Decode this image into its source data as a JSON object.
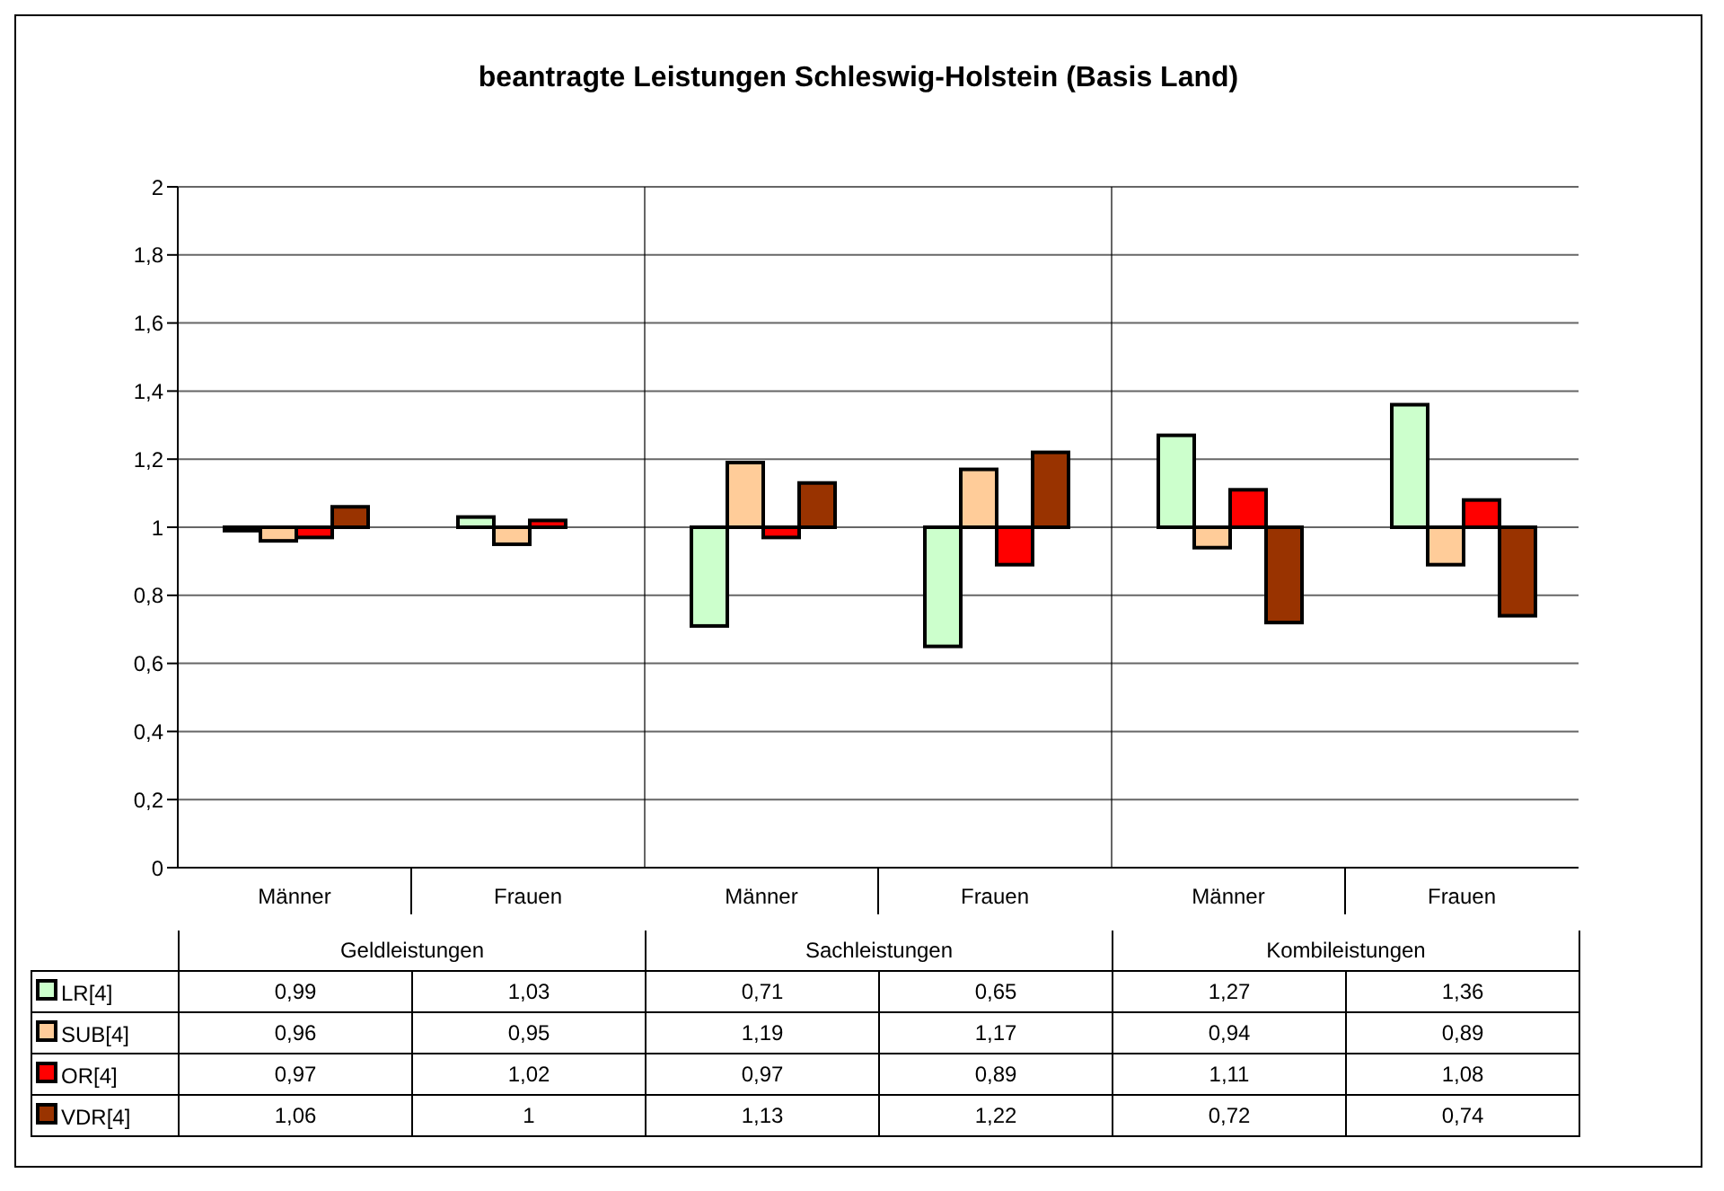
{
  "chart_data": {
    "type": "bar",
    "title": "beantragte Leistungen Schleswig-Holstein (Basis Land)",
    "categories": [
      "Männer",
      "Frauen",
      "Männer",
      "Frauen",
      "Männer",
      "Frauen"
    ],
    "annotations": [
      "Geldleistungen",
      "Sachleistungen",
      "Kombileistungen"
    ],
    "series": [
      {
        "name": "LR[4]",
        "color": "#ccffcc",
        "base": [
          1,
          1,
          1,
          1,
          1,
          1
        ],
        "values": [
          -0.01,
          0.03,
          -0.29,
          -0.35,
          0.27,
          0.36
        ]
      },
      {
        "name": "SUB[4]",
        "color": "#ffcc99",
        "base": [
          1,
          1,
          1,
          1,
          1,
          1
        ],
        "values": [
          -0.04,
          -0.05,
          0.19,
          0.17,
          -0.06,
          -0.11
        ]
      },
      {
        "name": "OR[4]",
        "color": "#ff0000",
        "base": [
          1,
          1,
          1,
          1,
          1,
          1
        ],
        "values": [
          -0.03,
          0.02,
          -0.03,
          -0.11,
          0.11,
          0.08
        ]
      },
      {
        "name": "VDR[4]",
        "color": "#993300",
        "base": [
          1,
          null,
          1,
          1,
          1,
          1
        ],
        "values": [
          0.06,
          null,
          0.13,
          0.22,
          -0.28,
          -0.26
        ]
      }
    ],
    "value_labels": [
      [
        "0,99",
        "1,03",
        "0,71",
        "0,65",
        "1,27",
        "1,36"
      ],
      [
        "0,96",
        "0,95",
        "1,19",
        "1,17",
        "0,94",
        "0,89"
      ],
      [
        "0,97",
        "1,02",
        "0,97",
        "0,89",
        "1,11",
        "1,08"
      ],
      [
        "1,06",
        "1",
        "1,13",
        "1,22",
        "0,72",
        "0,74"
      ]
    ],
    "ylim": [
      0,
      2
    ],
    "yticks": [
      {
        "value": 0,
        "label": "0"
      },
      {
        "value": 0.2,
        "label": "0,2"
      },
      {
        "value": 0.4,
        "label": "0,4"
      },
      {
        "value": 0.6,
        "label": "0,6"
      },
      {
        "value": 0.8,
        "label": "0,8"
      },
      {
        "value": 1,
        "label": "1"
      },
      {
        "value": 1.2,
        "label": "1,2"
      },
      {
        "value": 1.4,
        "label": "1,4"
      },
      {
        "value": 1.6,
        "label": "1,6"
      },
      {
        "value": 1.8,
        "label": "1,8"
      },
      {
        "value": 2,
        "label": "2"
      }
    ],
    "grid": "y",
    "legend": "bottom"
  }
}
